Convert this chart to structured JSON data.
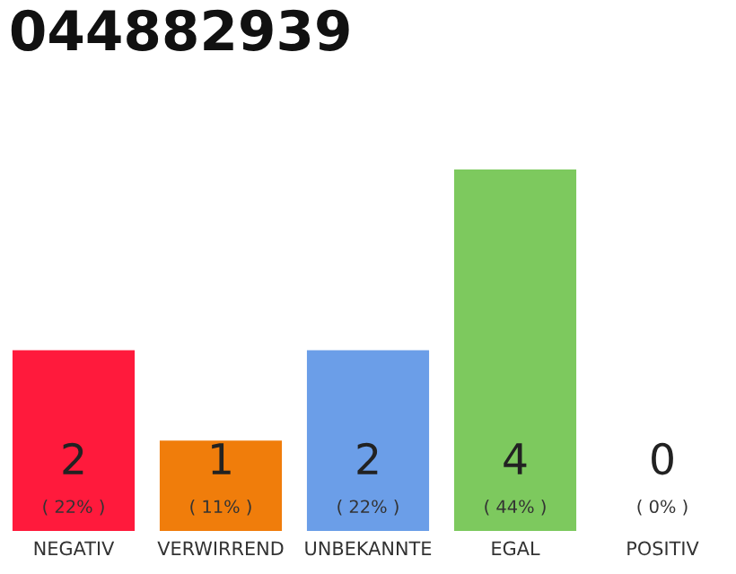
{
  "chart_data": {
    "type": "bar",
    "title": "044882939",
    "categories": [
      "NEGATIV",
      "VERWIRREND",
      "UNBEKANNTE",
      "EGAL",
      "POSITIV"
    ],
    "values": [
      2,
      1,
      2,
      4,
      0
    ],
    "colors": [
      "#ff1a3c",
      "#f07d0b",
      "#6b9ee8",
      "#7dc95e",
      "#e0e0e0"
    ],
    "data_labels": true,
    "annotations": [
      "( 22% )",
      "( 11% )",
      "( 22% )",
      "( 44% )",
      "( 0% )"
    ],
    "grid": false,
    "legend": false
  }
}
